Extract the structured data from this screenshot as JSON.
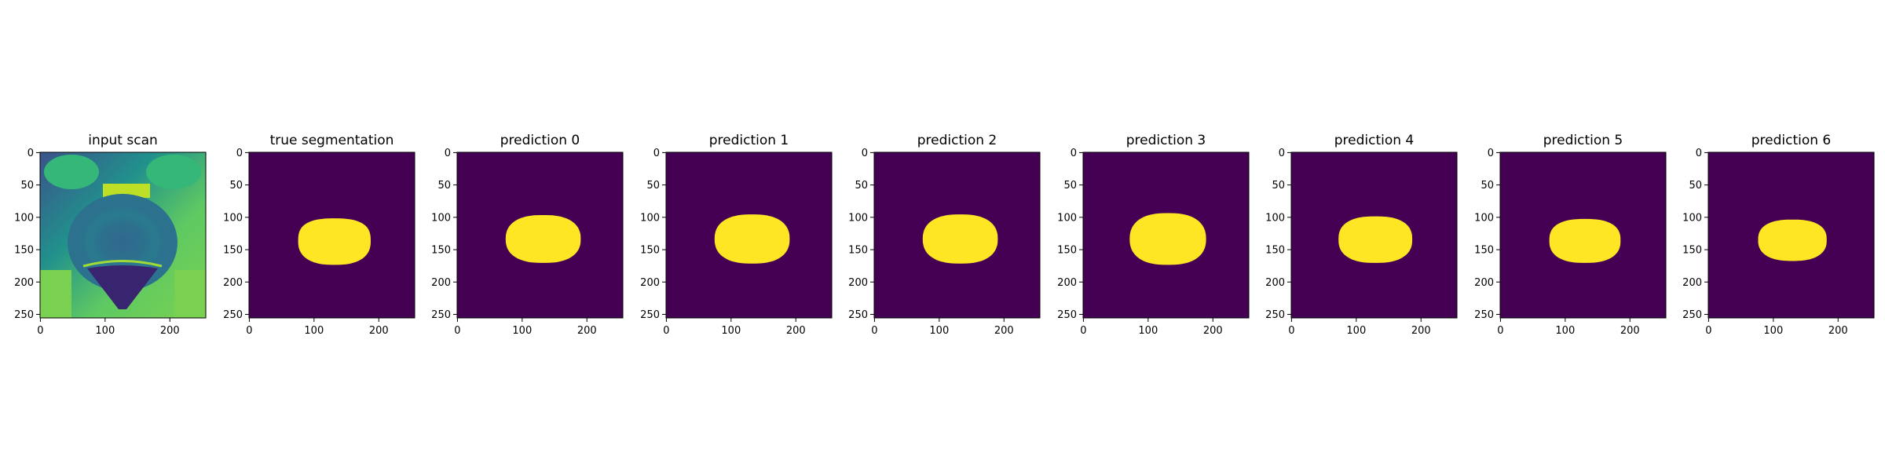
{
  "colors": {
    "background": "#440154",
    "mask": "#fde725",
    "scan_dark": "#31688e",
    "scan_mid": "#21918c",
    "scan_bright": "#5ec962",
    "scan_max": "#fde725"
  },
  "chart_data": {
    "type": "image-grid",
    "image_size": [
      256,
      256
    ],
    "xlim": [
      0,
      256
    ],
    "ylim": [
      256,
      0
    ],
    "x_ticks": [
      "0",
      "100",
      "200"
    ],
    "y_ticks": [
      "0",
      "50",
      "100",
      "150",
      "200",
      "250"
    ],
    "panels": [
      {
        "title": "input scan",
        "kind": "scan"
      },
      {
        "title": "true segmentation",
        "kind": "mask",
        "mask": {
          "cx": 132,
          "cy": 138,
          "rx": 56,
          "ry": 36,
          "top_flat": 0.35
        }
      },
      {
        "title": "prediction 0",
        "kind": "mask",
        "mask": {
          "cx": 133,
          "cy": 134,
          "rx": 58,
          "ry": 37,
          "top_flat": 0.0
        }
      },
      {
        "title": "prediction 1",
        "kind": "mask",
        "mask": {
          "cx": 133,
          "cy": 134,
          "rx": 58,
          "ry": 38,
          "top_flat": 0.0
        }
      },
      {
        "title": "prediction 2",
        "kind": "mask",
        "mask": {
          "cx": 133,
          "cy": 134,
          "rx": 58,
          "ry": 38,
          "top_flat": 0.0
        }
      },
      {
        "title": "prediction 3",
        "kind": "mask",
        "mask": {
          "cx": 131,
          "cy": 134,
          "rx": 59,
          "ry": 40,
          "top_flat": 0.0
        }
      },
      {
        "title": "prediction 4",
        "kind": "mask",
        "mask": {
          "cx": 130,
          "cy": 135,
          "rx": 57,
          "ry": 36,
          "top_flat": 0.1
        }
      },
      {
        "title": "prediction 5",
        "kind": "mask",
        "mask": {
          "cx": 131,
          "cy": 137,
          "rx": 55,
          "ry": 34,
          "top_flat": 0.2
        }
      },
      {
        "title": "prediction 6",
        "kind": "mask",
        "mask": {
          "cx": 130,
          "cy": 136,
          "rx": 53,
          "ry": 32,
          "top_flat": 0.15
        }
      }
    ]
  }
}
